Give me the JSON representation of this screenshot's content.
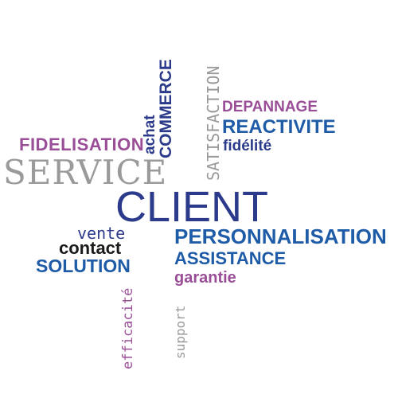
{
  "words": {
    "client": "CLIENT",
    "service": "SERVICE",
    "fidelisation": "FIDELISATION",
    "achat": "achat",
    "commerce": "COMMERCE",
    "satisfaction": "SATISFACTION",
    "depannage": "DEPANNAGE",
    "reactivite": "REACTIVITE",
    "fidelite": "fidélité",
    "personnalisation": "PERSONNALISATION",
    "assistance": "ASSISTANCE",
    "garantie": "garantie",
    "vente": "vente",
    "contact": "contact",
    "solution": "SOLUTION",
    "efficacite": "efficacité",
    "support": "support"
  },
  "colors": {
    "navy": "#2b3a8a",
    "blue": "#1f5ca8",
    "purple": "#9a4e97",
    "gray": "#9a9a9a",
    "dark": "#1a1a1a"
  }
}
